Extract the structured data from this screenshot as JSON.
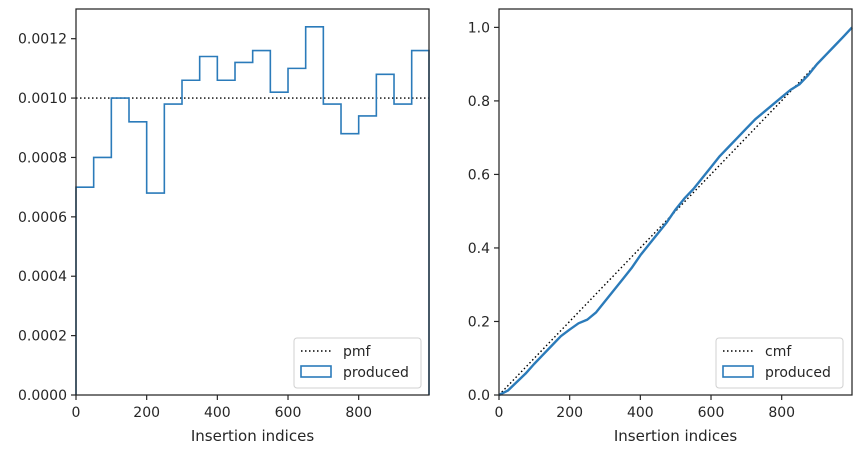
{
  "chart_data": [
    {
      "type": "histogram",
      "xlabel": "Insertion indices",
      "ylabel": "",
      "xlim": [
        0,
        999
      ],
      "ylim": [
        0,
        0.0013
      ],
      "xticks": [
        0,
        200,
        400,
        600,
        800
      ],
      "yticks": [
        0,
        0.0002,
        0.0004,
        0.0006,
        0.0008,
        0.001,
        0.0012
      ],
      "ytick_labels": [
        "0.0000",
        "0.0002",
        "0.0004",
        "0.0006",
        "0.0008",
        "0.0010",
        "0.0012"
      ],
      "xtick_labels": [
        "0",
        "200",
        "400",
        "600",
        "800"
      ],
      "bin_edges": [
        0,
        50,
        100,
        150,
        200,
        250,
        300,
        350,
        400,
        450,
        500,
        550,
        600,
        650,
        700,
        750,
        800,
        850,
        900,
        950,
        999
      ],
      "series": [
        {
          "name": "pmf",
          "style": "dotted",
          "color": "#000000",
          "values": [
            0.001
          ]
        },
        {
          "name": "produced",
          "style": "step",
          "color": "#2b7bba",
          "values": [
            0.0007,
            0.0008,
            0.001,
            0.00092,
            0.00068,
            0.00098,
            0.00106,
            0.00114,
            0.00106,
            0.00112,
            0.00116,
            0.00102,
            0.0011,
            0.00124,
            0.00098,
            0.00088,
            0.00094,
            0.00108,
            0.00098,
            0.00116
          ]
        }
      ],
      "legend": {
        "location": "bottom-right",
        "entries": [
          "pmf",
          "produced"
        ]
      }
    },
    {
      "type": "line",
      "xlabel": "Insertion indices",
      "ylabel": "",
      "xlim": [
        0,
        999
      ],
      "ylim": [
        0,
        1.05
      ],
      "xticks": [
        0,
        200,
        400,
        600,
        800
      ],
      "yticks": [
        0,
        0.2,
        0.4,
        0.6,
        0.8,
        1.0
      ],
      "ytick_labels": [
        "0.0",
        "0.2",
        "0.4",
        "0.6",
        "0.8",
        "1.0"
      ],
      "xtick_labels": [
        "0",
        "200",
        "400",
        "600",
        "800"
      ],
      "series": [
        {
          "name": "cmf",
          "style": "dotted",
          "color": "#000000",
          "x": [
            0,
            999
          ],
          "y": [
            0,
            1.0
          ]
        },
        {
          "name": "produced",
          "style": "step",
          "color": "#2b7bba",
          "x": [
            0,
            25,
            50,
            75,
            100,
            125,
            150,
            175,
            200,
            225,
            250,
            275,
            300,
            325,
            350,
            375,
            400,
            425,
            450,
            475,
            500,
            525,
            550,
            575,
            600,
            625,
            650,
            675,
            700,
            725,
            750,
            775,
            800,
            825,
            850,
            875,
            900,
            925,
            950,
            975,
            999
          ],
          "y": [
            0,
            0.012,
            0.035,
            0.058,
            0.085,
            0.11,
            0.135,
            0.16,
            0.178,
            0.195,
            0.205,
            0.225,
            0.255,
            0.285,
            0.315,
            0.345,
            0.38,
            0.41,
            0.44,
            0.47,
            0.505,
            0.535,
            0.56,
            0.59,
            0.62,
            0.65,
            0.675,
            0.7,
            0.725,
            0.75,
            0.77,
            0.79,
            0.81,
            0.83,
            0.845,
            0.87,
            0.9,
            0.925,
            0.95,
            0.975,
            1.0
          ]
        }
      ],
      "legend": {
        "location": "bottom-right",
        "entries": [
          "cmf",
          "produced"
        ]
      }
    }
  ]
}
